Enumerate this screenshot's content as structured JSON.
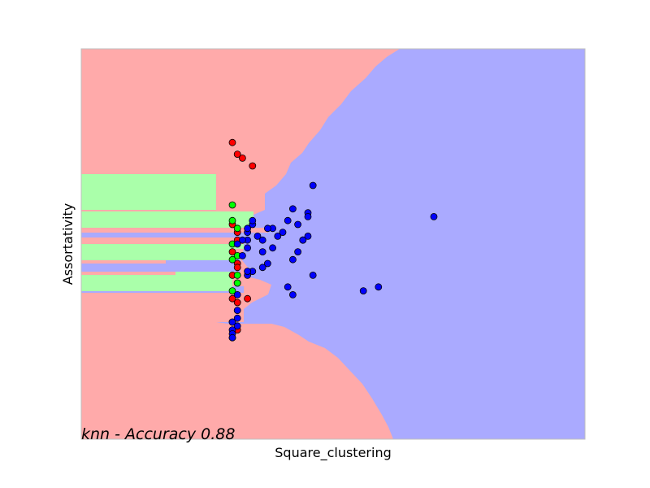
{
  "chart_data": {
    "type": "scatter",
    "title": "",
    "xlabel": "Square_clustering",
    "ylabel": "Assortativity",
    "xticks": [],
    "yticks": [],
    "annotation": "knn - Accuracy 0.88",
    "background": "decision-regions",
    "colors": {
      "region_red": "#ffaaaa",
      "region_green": "#aaffaa",
      "region_blue": "#aaaaff",
      "class_red": "#ff0000",
      "class_green": "#00ff00",
      "class_blue": "#0000ff",
      "frame": "#bfbfbf"
    },
    "series": [
      {
        "points": [
          [
            0.3,
            0.76
          ],
          [
            0.32,
            0.72
          ],
          [
            0.31,
            0.73
          ],
          [
            0.34,
            0.7
          ],
          [
            0.3,
            0.55
          ],
          [
            0.31,
            0.53
          ],
          [
            0.31,
            0.51
          ],
          [
            0.3,
            0.48
          ],
          [
            0.31,
            0.45
          ],
          [
            0.31,
            0.44
          ],
          [
            0.3,
            0.42
          ],
          [
            0.31,
            0.4
          ],
          [
            0.3,
            0.36
          ],
          [
            0.31,
            0.35
          ],
          [
            0.33,
            0.36
          ],
          [
            0.3,
            0.3
          ],
          [
            0.31,
            0.28
          ],
          [
            0.3,
            0.26
          ]
        ]
      },
      {
        "points": [
          [
            0.3,
            0.6
          ],
          [
            0.3,
            0.56
          ],
          [
            0.31,
            0.54
          ],
          [
            0.3,
            0.5
          ],
          [
            0.31,
            0.47
          ],
          [
            0.3,
            0.46
          ],
          [
            0.31,
            0.42
          ],
          [
            0.31,
            0.4
          ],
          [
            0.3,
            0.38
          ]
        ]
      },
      {
        "points": [
          [
            0.46,
            0.65
          ],
          [
            0.42,
            0.59
          ],
          [
            0.45,
            0.58
          ],
          [
            0.45,
            0.57
          ],
          [
            0.41,
            0.56
          ],
          [
            0.43,
            0.55
          ],
          [
            0.44,
            0.51
          ],
          [
            0.4,
            0.53
          ],
          [
            0.45,
            0.52
          ],
          [
            0.39,
            0.52
          ],
          [
            0.38,
            0.54
          ],
          [
            0.37,
            0.54
          ],
          [
            0.36,
            0.51
          ],
          [
            0.35,
            0.52
          ],
          [
            0.34,
            0.55
          ],
          [
            0.34,
            0.56
          ],
          [
            0.33,
            0.53
          ],
          [
            0.33,
            0.54
          ],
          [
            0.33,
            0.51
          ],
          [
            0.32,
            0.51
          ],
          [
            0.31,
            0.5
          ],
          [
            0.36,
            0.48
          ],
          [
            0.38,
            0.49
          ],
          [
            0.43,
            0.48
          ],
          [
            0.44,
            0.51
          ],
          [
            0.42,
            0.46
          ],
          [
            0.37,
            0.45
          ],
          [
            0.36,
            0.44
          ],
          [
            0.34,
            0.43
          ],
          [
            0.33,
            0.42
          ],
          [
            0.33,
            0.43
          ],
          [
            0.41,
            0.39
          ],
          [
            0.46,
            0.42
          ],
          [
            0.42,
            0.37
          ],
          [
            0.56,
            0.38
          ],
          [
            0.59,
            0.39
          ],
          [
            0.7,
            0.57
          ],
          [
            0.31,
            0.37
          ],
          [
            0.31,
            0.33
          ],
          [
            0.31,
            0.31
          ],
          [
            0.3,
            0.3
          ],
          [
            0.3,
            0.28
          ],
          [
            0.3,
            0.27
          ],
          [
            0.3,
            0.26
          ],
          [
            0.31,
            0.29
          ],
          [
            0.32,
            0.47
          ],
          [
            0.33,
            0.49
          ]
        ]
      }
    ],
    "xlim": [
      0,
      1
    ],
    "ylim": [
      0,
      1
    ],
    "grid": false,
    "legend": "none"
  }
}
